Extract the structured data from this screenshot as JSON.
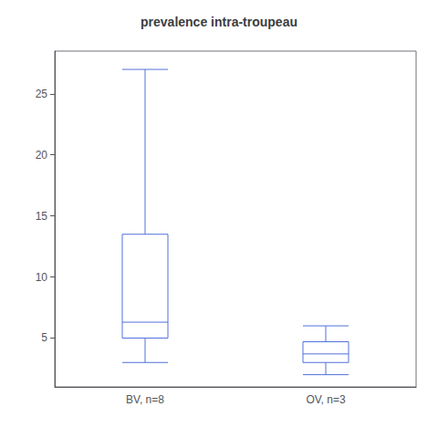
{
  "chart_data": {
    "type": "boxplot",
    "title": "prevalence intra-troupeau",
    "categories": [
      "BV, n=8",
      "OV, n=3"
    ],
    "stats": [
      {
        "whisker_low": 3.0,
        "q1": 5.0,
        "median": 6.3,
        "q3": 13.5,
        "whisker_high": 27.0
      },
      {
        "whisker_low": 2.0,
        "q1": 3.0,
        "median": 3.7,
        "q3": 4.7,
        "whisker_high": 6.0
      }
    ],
    "ylim": [
      1.0,
      28.5
    ],
    "yticks": [
      5,
      10,
      15,
      20,
      25
    ],
    "grid": false
  }
}
